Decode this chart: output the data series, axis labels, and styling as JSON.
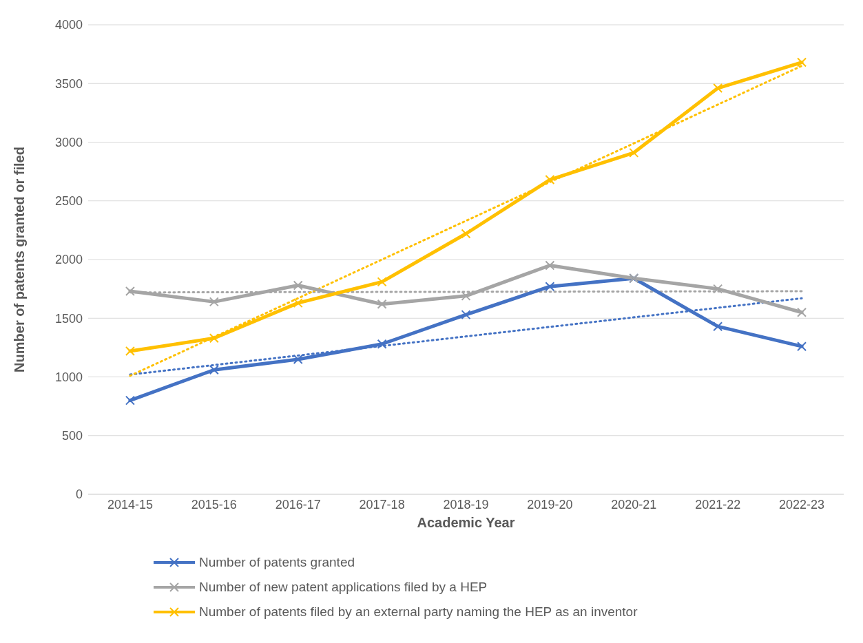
{
  "chart_data": {
    "type": "line",
    "xlabel": "Academic Year",
    "ylabel": "Number of patents granted or filed",
    "categories": [
      "2014-15",
      "2015-16",
      "2016-17",
      "2017-18",
      "2018-19",
      "2019-20",
      "2020-21",
      "2021-22",
      "2022-23"
    ],
    "series": [
      {
        "name": "Number of patents granted",
        "color": "#4472c4",
        "values": [
          800,
          1060,
          1150,
          1280,
          1530,
          1770,
          1840,
          1430,
          1260
        ]
      },
      {
        "name": "Number of new patent applications filed by a HEP",
        "color": "#a5a5a5",
        "values": [
          1730,
          1640,
          1780,
          1620,
          1690,
          1950,
          1840,
          1750,
          1550
        ]
      },
      {
        "name": "Number of patents filed by an external party naming the HEP as an inventor",
        "color": "#ffc000",
        "values": [
          1220,
          1330,
          1630,
          1810,
          2220,
          2680,
          2910,
          3460,
          3680
        ]
      },
      {
        "type": "line",
        "color": "#4472c4",
        "x": [
          "2014-15",
          "2022-23"
        ],
        "values": [
          1020,
          1670
        ],
        "line_style": "dotted",
        "marker": "none"
      },
      {
        "type": "line",
        "color": "#a5a5a5",
        "x": [
          "2014-15",
          "2022-23"
        ],
        "values": [
          1720,
          1730
        ],
        "line_style": "dotted",
        "marker": "none"
      },
      {
        "type": "line",
        "color": "#ffc000",
        "x": [
          "2014-15",
          "2022-23"
        ],
        "values": [
          1010,
          3650
        ],
        "line_style": "dotted",
        "marker": "none"
      }
    ],
    "ylim": [
      0,
      4000
    ],
    "yticks": [
      0,
      500,
      1000,
      1500,
      2000,
      2500,
      3000,
      3500,
      4000
    ],
    "grid": "y",
    "legend": "bottom",
    "marker": "cross",
    "line_style": "solid"
  }
}
